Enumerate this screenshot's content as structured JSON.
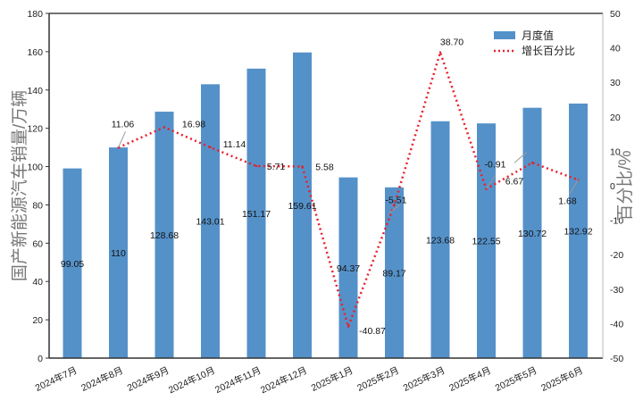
{
  "chart_data": {
    "type": "bar+line",
    "categories": [
      "2024年7月",
      "2024年8月",
      "2024年9月",
      "2024年10月",
      "2024年11月",
      "2024年12月",
      "2025年1月",
      "2025年2月",
      "2025年3月",
      "2025年4月",
      "2025年5月",
      "2025年6月"
    ],
    "series": [
      {
        "name": "月度值",
        "type": "bar",
        "axis": "left",
        "color": "#5591c9",
        "values": [
          99.05,
          110,
          128.68,
          143.01,
          151.17,
          159.61,
          94.37,
          89.17,
          123.68,
          122.55,
          130.72,
          132.92
        ],
        "labels": [
          "99.05",
          "110",
          "128.68",
          "143.01",
          "151.17",
          "159.61",
          "94.37",
          "89.17",
          "123.68",
          "122.55",
          "130.72",
          "132.92"
        ]
      },
      {
        "name": "增长百分比",
        "type": "line",
        "axis": "right",
        "color": "#e8202a",
        "style": "dotted",
        "values": [
          null,
          11.06,
          16.98,
          11.14,
          5.71,
          5.58,
          -40.87,
          -5.51,
          38.7,
          -0.91,
          6.67,
          1.68
        ],
        "labels": [
          "",
          "11.06",
          "16.98",
          "11.14",
          "5.71",
          "5.58",
          "-40.87",
          "-5.51",
          "38.70",
          "-0.91",
          "6.67",
          "1.68"
        ]
      }
    ],
    "ylabel": "国产新能源汽车销量/万辆",
    "y2label": "百分比/%",
    "ylim": [
      0,
      180
    ],
    "y2lim": [
      -50,
      50
    ],
    "yticks": [
      "0",
      "20",
      "40",
      "60",
      "80",
      "100",
      "120",
      "140",
      "160",
      "180"
    ],
    "y2ticks": [
      "-50",
      "-40",
      "-30",
      "-20",
      "-10",
      "0",
      "10",
      "20",
      "30",
      "40",
      "50"
    ],
    "legend_position": "top-right",
    "grid": false
  }
}
